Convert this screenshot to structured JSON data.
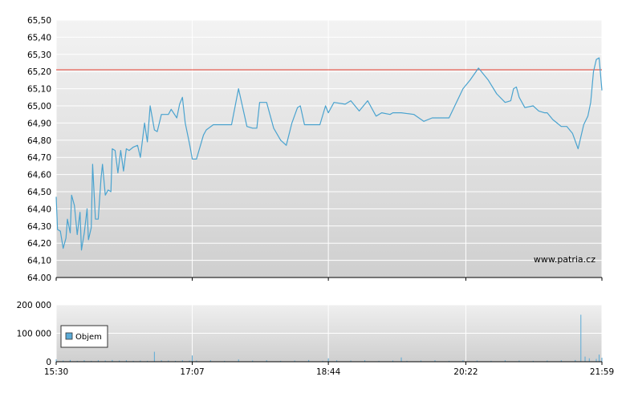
{
  "watermark": "www.patria.cz",
  "colors": {
    "price_line": "#4aa3cf",
    "reference_line": "#e53a2c",
    "volume_bar": "#5aaad6",
    "grid": "#ffffff",
    "plot_bg_top": "#f3f3f3",
    "plot_bg_bottom": "#d0d0d0"
  },
  "chart_data": [
    {
      "type": "line",
      "panel": "price",
      "title": "",
      "xlabel": "",
      "ylabel": "",
      "ylim": [
        64.0,
        65.5
      ],
      "y_ticks": [
        "64.00",
        "64,10",
        "64,20",
        "64,30",
        "64,40",
        "64,50",
        "64,60",
        "64,70",
        "64,80",
        "64,90",
        "65,00",
        "65,10",
        "65,20",
        "65,30",
        "65,40",
        "65,50"
      ],
      "x_ticks": [
        "15:30",
        "17:07",
        "18:44",
        "20:22",
        "21:59"
      ],
      "reference_line": 65.21,
      "grid": true,
      "series": [
        {
          "x": [
            "15:30",
            "15:31",
            "15:33",
            "15:35",
            "15:37",
            "15:38",
            "15:40",
            "15:41",
            "15:43",
            "15:45",
            "15:47",
            "15:48",
            "15:50",
            "15:52",
            "15:53",
            "15:55",
            "15:56",
            "15:58",
            "16:00",
            "16:02",
            "16:03",
            "16:05",
            "16:07",
            "16:09",
            "16:10",
            "16:12",
            "16:14",
            "16:16",
            "16:18",
            "16:20",
            "16:22",
            "16:25",
            "16:28",
            "16:30",
            "16:33",
            "16:35",
            "16:37",
            "16:40",
            "16:42",
            "16:45",
            "16:50",
            "16:52",
            "16:56",
            "16:58",
            "17:00",
            "17:02",
            "17:05",
            "17:07",
            "17:10",
            "17:15",
            "17:17",
            "17:22",
            "17:25",
            "17:28",
            "17:35",
            "17:40",
            "17:46",
            "17:50",
            "17:53",
            "17:55",
            "17:58",
            "18:00",
            "18:05",
            "18:10",
            "18:14",
            "18:18",
            "18:22",
            "18:24",
            "18:27",
            "18:33",
            "18:38",
            "18:42",
            "18:44",
            "18:48",
            "18:56",
            "19:00",
            "19:06",
            "19:12",
            "19:18",
            "19:22",
            "19:28",
            "19:30",
            "19:36",
            "19:45",
            "19:52",
            "19:58",
            "20:05",
            "20:10",
            "20:20",
            "20:25",
            "20:31",
            "20:38",
            "20:44",
            "20:50",
            "20:54",
            "20:56",
            "20:58",
            "21:00",
            "21:04",
            "21:10",
            "21:14",
            "21:18",
            "21:20",
            "21:24",
            "21:27",
            "21:30",
            "21:34",
            "21:38",
            "21:42",
            "21:46",
            "21:49",
            "21:51",
            "21:53",
            "21:55",
            "21:57",
            "21:59"
          ],
          "values": [
            64.47,
            64.28,
            64.27,
            64.17,
            64.23,
            64.34,
            64.26,
            64.48,
            64.42,
            64.25,
            64.38,
            64.16,
            64.26,
            64.4,
            64.22,
            64.29,
            64.66,
            64.34,
            64.34,
            64.58,
            64.66,
            64.48,
            64.51,
            64.5,
            64.75,
            64.74,
            64.61,
            64.74,
            64.62,
            64.75,
            64.74,
            64.76,
            64.77,
            64.7,
            64.9,
            64.79,
            65.0,
            64.86,
            64.85,
            64.95,
            64.95,
            64.98,
            64.93,
            65.01,
            65.05,
            64.9,
            64.78,
            64.69,
            64.69,
            64.83,
            64.86,
            64.89,
            64.89,
            64.89,
            64.89,
            65.1,
            64.88,
            64.87,
            64.87,
            65.02,
            65.02,
            65.02,
            64.87,
            64.8,
            64.77,
            64.9,
            64.99,
            65.0,
            64.89,
            64.89,
            64.89,
            65.0,
            64.96,
            65.02,
            65.01,
            65.03,
            64.97,
            65.03,
            64.94,
            64.96,
            64.95,
            64.96,
            64.96,
            64.95,
            64.91,
            64.93,
            64.93,
            64.93,
            65.1,
            65.15,
            65.22,
            65.15,
            65.07,
            65.02,
            65.03,
            65.1,
            65.11,
            65.05,
            64.99,
            65.0,
            64.97,
            64.96,
            64.96,
            64.92,
            64.9,
            64.88,
            64.88,
            64.84,
            64.75,
            64.89,
            64.94,
            65.02,
            65.2,
            65.27,
            65.28,
            65.09
          ]
        }
      ]
    },
    {
      "type": "bar",
      "panel": "volume",
      "title": "",
      "xlabel": "",
      "ylabel": "",
      "ylim": [
        0,
        200000
      ],
      "y_ticks": [
        "0",
        "100 000",
        "200 000"
      ],
      "x_ticks": [
        "15:30",
        "17:07",
        "18:44",
        "20:22",
        "21:59"
      ],
      "legend": "Objem",
      "legend_position": "left",
      "grid": true,
      "series": [
        {
          "name": "Objem",
          "x": [
            "15:30",
            "15:35",
            "15:40",
            "15:45",
            "15:50",
            "15:55",
            "16:00",
            "16:05",
            "16:10",
            "16:15",
            "16:20",
            "16:25",
            "16:30",
            "16:35",
            "16:40",
            "16:45",
            "16:50",
            "16:55",
            "17:00",
            "17:05",
            "17:07",
            "17:10",
            "17:20",
            "17:30",
            "17:40",
            "17:50",
            "18:00",
            "18:10",
            "18:20",
            "18:30",
            "18:40",
            "18:44",
            "18:50",
            "19:00",
            "19:10",
            "19:20",
            "19:30",
            "19:36",
            "19:40",
            "19:50",
            "20:00",
            "20:10",
            "20:20",
            "20:30",
            "20:40",
            "20:50",
            "21:00",
            "21:10",
            "21:20",
            "21:30",
            "21:40",
            "21:44",
            "21:47",
            "21:50",
            "21:55",
            "21:57",
            "21:59"
          ],
          "values": [
            8000,
            4000,
            6000,
            3000,
            5000,
            3000,
            5000,
            4000,
            6000,
            4000,
            5000,
            3000,
            4000,
            3000,
            35000,
            5000,
            4000,
            3000,
            5000,
            4000,
            22000,
            4000,
            5000,
            3000,
            8000,
            4000,
            5000,
            3000,
            4000,
            6000,
            3000,
            12000,
            5000,
            4000,
            5000,
            3000,
            4000,
            15000,
            3000,
            4000,
            5000,
            3000,
            5000,
            4000,
            3000,
            5000,
            4000,
            3000,
            4000,
            5000,
            6000,
            165000,
            18000,
            12000,
            10000,
            25000,
            14000
          ]
        }
      ]
    }
  ]
}
